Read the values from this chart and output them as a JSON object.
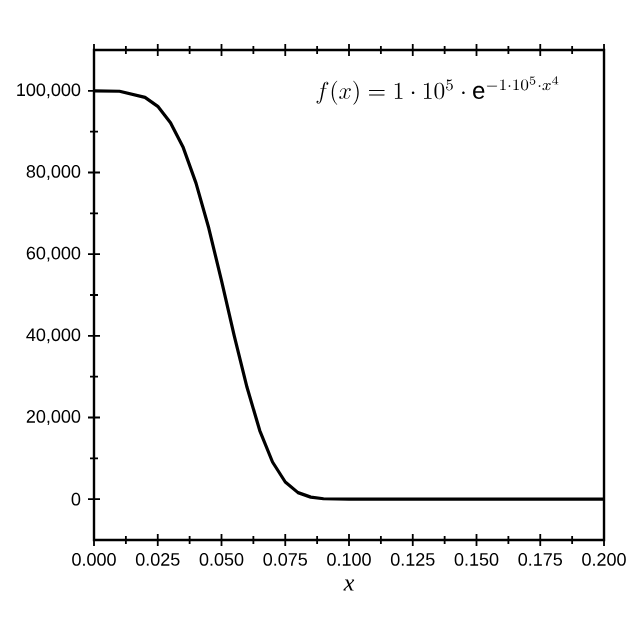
{
  "chart_data": {
    "type": "line",
    "xlabel": "x",
    "annotations": [
      "f(x)=1\\cdot 10^{5}\\cdot \\mathrm{e}^{-1\\cdot 10^{5}\\cdot x^{4}}"
    ],
    "x": [
      0,
      0.01,
      0.02,
      0.025,
      0.03,
      0.035,
      0.04,
      0.045,
      0.05,
      0.055,
      0.06,
      0.065,
      0.07,
      0.075,
      0.08,
      0.085,
      0.09,
      0.1,
      0.12,
      0.15,
      0.2
    ],
    "values": [
      100000,
      99900,
      98400,
      96200,
      92200,
      86100,
      77400,
      66400,
      53500,
      40000,
      27400,
      16800,
      9100,
      4200,
      1600,
      500,
      100,
      0,
      0,
      0,
      0
    ],
    "color": "#000000",
    "xlim": [
      0,
      0.2
    ],
    "ylim": [
      -10000,
      110000
    ],
    "xticks": [
      {
        "value": 0,
        "label": "0.000"
      },
      {
        "value": 0.025,
        "label": "0.025"
      },
      {
        "value": 0.05,
        "label": "0.050"
      },
      {
        "value": 0.075,
        "label": "0.075"
      },
      {
        "value": 0.1,
        "label": "0.100"
      },
      {
        "value": 0.125,
        "label": "0.125"
      },
      {
        "value": 0.15,
        "label": "0.150"
      },
      {
        "value": 0.175,
        "label": "0.175"
      },
      {
        "value": 0.2,
        "label": "0.200"
      }
    ],
    "yticks": [
      0,
      {
        "value": 20000,
        "label": "20,000"
      },
      {
        "value": 40000,
        "label": "40,000"
      },
      {
        "value": 60000,
        "label": "60,000"
      },
      {
        "value": 80000,
        "label": "80,000"
      },
      {
        "value": 100000,
        "label": "100,000"
      }
    ],
    "grid": false,
    "marker": "none",
    "line_style": "solid"
  }
}
